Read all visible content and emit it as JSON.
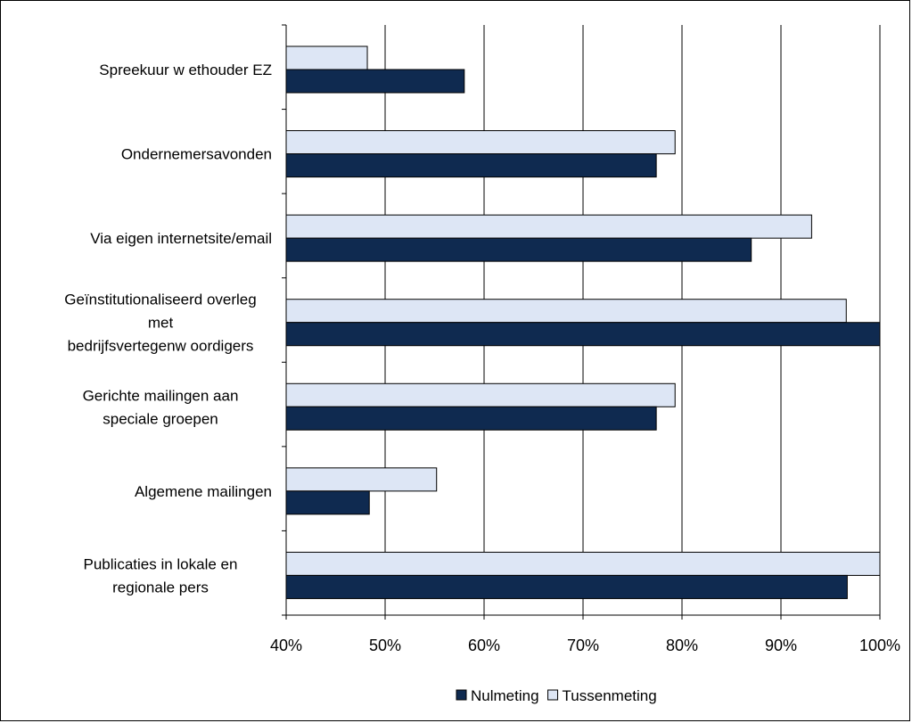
{
  "colors": {
    "nulmeting": "#0f2a50",
    "tussenmeting": "#dde6f5",
    "gridline": "#000000",
    "bar_stroke": "#000000"
  },
  "chart_data": {
    "type": "bar",
    "orientation": "horizontal",
    "title": "",
    "xlabel": "",
    "ylabel": "",
    "xlim": [
      0.4,
      1.0
    ],
    "xticks": [
      0.4,
      0.5,
      0.6,
      0.7,
      0.8,
      0.9,
      1.0
    ],
    "xtick_labels": [
      "40%",
      "50%",
      "60%",
      "70%",
      "80%",
      "90%",
      "100%"
    ],
    "grid": "vertical",
    "legend_position": "bottom",
    "categories": [
      [
        "Spreekuur w ethouder EZ"
      ],
      [
        "Ondernemersavonden"
      ],
      [
        "Via eigen internetsite/email"
      ],
      [
        "Geïnstitutionaliseerd overleg",
        "met",
        "bedrijfsvertegenw oordigers"
      ],
      [
        "Gerichte mailingen aan",
        "speciale groepen"
      ],
      [
        "Algemene mailingen"
      ],
      [
        "Publicaties in lokale en",
        "regionale pers"
      ]
    ],
    "series": [
      {
        "name": "Nulmeting",
        "color_key": "nulmeting",
        "values": [
          0.58,
          0.774,
          0.87,
          1.0,
          0.774,
          0.484,
          0.967
        ]
      },
      {
        "name": "Tussenmeting",
        "color_key": "tussenmeting",
        "values": [
          0.482,
          0.793,
          0.931,
          0.966,
          0.793,
          0.552,
          1.0
        ]
      }
    ]
  }
}
